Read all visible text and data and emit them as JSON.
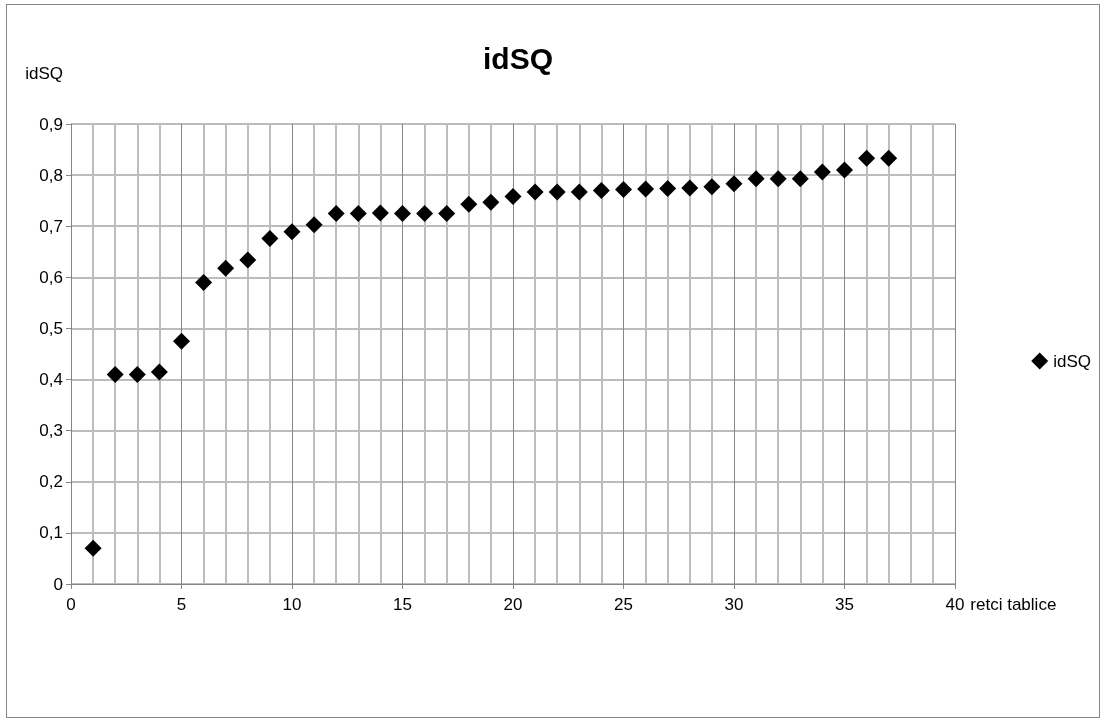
{
  "chart_data": {
    "type": "scatter",
    "title": "idSQ",
    "xlabel": "retci tablice",
    "ylabel": "idSQ",
    "x": [
      1,
      2,
      3,
      4,
      5,
      6,
      7,
      8,
      9,
      10,
      11,
      12,
      13,
      14,
      15,
      16,
      17,
      18,
      19,
      20,
      21,
      22,
      23,
      24,
      25,
      26,
      27,
      28,
      29,
      30,
      31,
      32,
      33,
      34,
      35,
      36,
      37
    ],
    "series": [
      {
        "name": "idSQ",
        "color": "#000000",
        "values": [
          0.07,
          0.41,
          0.41,
          0.415,
          0.475,
          0.59,
          0.618,
          0.634,
          0.676,
          0.689,
          0.703,
          0.725,
          0.725,
          0.726,
          0.725,
          0.725,
          0.725,
          0.743,
          0.747,
          0.758,
          0.767,
          0.767,
          0.767,
          0.77,
          0.772,
          0.773,
          0.774,
          0.775,
          0.777,
          0.783,
          0.793,
          0.793,
          0.793,
          0.806,
          0.81,
          0.833,
          0.833
        ]
      }
    ],
    "xlim": [
      0,
      40
    ],
    "xticks": [
      0,
      5,
      10,
      15,
      20,
      25,
      30,
      35,
      40
    ],
    "ylim": [
      0,
      0.9
    ],
    "yticks": [
      {
        "value": 0,
        "label": "0"
      },
      {
        "value": 0.1,
        "label": "0,1"
      },
      {
        "value": 0.2,
        "label": "0,2"
      },
      {
        "value": 0.3,
        "label": "0,3"
      },
      {
        "value": 0.4,
        "label": "0,4"
      },
      {
        "value": 0.5,
        "label": "0,5"
      },
      {
        "value": 0.6,
        "label": "0,6"
      },
      {
        "value": 0.7,
        "label": "0,7"
      },
      {
        "value": 0.8,
        "label": "0,8"
      },
      {
        "value": 0.9,
        "label": "0,9"
      }
    ],
    "grid": true,
    "legend": "right",
    "marker": "diamond"
  }
}
